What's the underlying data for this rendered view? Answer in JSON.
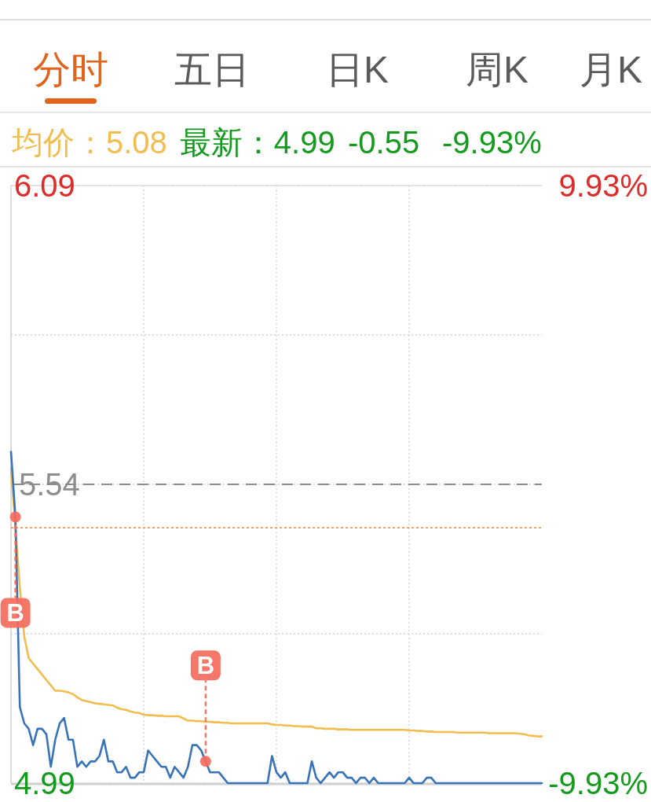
{
  "chart_data": {
    "type": "line",
    "title": "分时",
    "annotations": [
      "五日",
      "日K",
      "周K",
      "月K",
      "均价：5.08",
      "最新：4.99",
      "-0.55",
      "-9.93%"
    ],
    "categories": [
      null,
      null,
      null,
      null,
      null,
      null,
      null,
      null,
      null,
      null,
      null,
      null,
      null,
      null,
      null,
      null,
      null,
      null,
      null,
      null,
      null,
      null,
      null,
      null,
      null,
      null,
      null,
      null,
      null,
      null,
      null,
      null,
      null,
      null,
      null,
      null,
      null,
      null,
      null,
      null,
      null,
      null,
      null,
      null,
      null,
      null,
      null,
      null,
      null,
      null,
      null,
      null,
      null,
      null,
      null,
      null,
      null,
      null,
      null,
      null,
      null,
      null,
      null,
      null,
      null,
      null,
      null,
      null,
      null,
      null,
      null,
      null,
      null,
      null,
      null,
      null,
      null,
      null,
      null,
      null,
      null,
      null,
      null,
      null,
      null,
      null,
      null,
      null,
      null,
      null,
      null,
      null,
      null,
      null,
      null,
      null,
      null,
      null,
      null,
      null,
      null,
      null,
      null,
      null,
      null,
      null,
      null,
      null,
      null,
      null,
      null,
      null,
      null,
      null,
      null,
      null,
      null,
      null,
      null,
      null,
      null
    ],
    "series": [
      {
        "color": "#f2bd4f",
        "values": [
          5.57,
          5.46,
          5.35,
          5.26,
          5.22,
          5.21,
          5.2,
          5.19,
          5.18,
          5.17,
          5.16,
          5.16,
          5.159,
          5.157,
          5.154,
          5.148,
          5.143,
          5.141,
          5.139,
          5.137,
          5.136,
          5.135,
          5.134,
          5.133,
          5.129,
          5.126,
          5.125,
          5.122,
          5.12,
          5.119,
          5.116,
          5.115,
          5.115,
          5.114,
          5.114,
          5.113,
          5.113,
          5.113,
          5.113,
          5.109,
          5.105,
          5.105,
          5.104,
          5.104,
          5.103,
          5.103,
          5.102,
          5.102,
          5.101,
          5.101,
          5.1,
          5.1,
          5.1,
          5.1,
          5.1,
          5.1,
          5.1,
          5.1,
          5.1,
          5.098,
          5.097,
          5.097,
          5.096,
          5.096,
          5.095,
          5.095,
          5.094,
          5.094,
          5.094,
          5.091,
          5.091,
          5.09,
          5.09,
          5.09,
          5.089,
          5.089,
          5.089,
          5.088,
          5.088,
          5.088,
          5.088,
          5.088,
          5.088,
          5.088,
          5.088,
          5.088,
          5.088,
          5.088,
          5.088,
          5.088,
          5.087,
          5.087,
          5.086,
          5.086,
          5.085,
          5.085,
          5.084,
          5.084,
          5.084,
          5.084,
          5.084,
          5.083,
          5.083,
          5.083,
          5.083,
          5.083,
          5.083,
          5.083,
          5.082,
          5.082,
          5.082,
          5.082,
          5.082,
          5.082,
          5.082,
          5.081,
          5.08,
          5.078,
          5.077,
          5.076,
          5.076
        ]
      },
      {
        "color": "#3873b9",
        "values": [
          5.6,
          5.48,
          5.13,
          5.1,
          5.09,
          5.06,
          5.09,
          5.09,
          5.08,
          5.02,
          5.07,
          5.1,
          5.11,
          5.07,
          5.07,
          5.02,
          5.03,
          5.02,
          5.03,
          5.03,
          5.04,
          5.07,
          5.03,
          5.03,
          5.01,
          5.01,
          5.02,
          5.0,
          5.0,
          5.01,
          5.01,
          5.05,
          5.04,
          5.03,
          5.02,
          5.02,
          5.0,
          5.02,
          5.01,
          5.0,
          5.02,
          5.06,
          5.06,
          5.05,
          5.03,
          5.01,
          5.01,
          5.01,
          5.0,
          4.99,
          4.99,
          4.99,
          4.99,
          4.99,
          4.99,
          4.99,
          4.99,
          4.99,
          4.99,
          5.04,
          5.01,
          5.0,
          5.01,
          4.99,
          4.99,
          4.99,
          4.99,
          4.99,
          5.03,
          5.0,
          4.99,
          5.0,
          5.01,
          5.0,
          5.01,
          5.01,
          5.0,
          5.0,
          4.99,
          5.0,
          5.0,
          4.99,
          5.0,
          4.99,
          4.99,
          4.99,
          4.99,
          4.99,
          4.99,
          4.99,
          5.0,
          4.99,
          4.99,
          4.99,
          5.0,
          5.0,
          4.99,
          4.99,
          4.99,
          4.99,
          4.99,
          4.99,
          4.99,
          4.99,
          4.99,
          4.99,
          4.99,
          4.99,
          4.99,
          4.99,
          4.99,
          4.99,
          4.99,
          4.99,
          4.99,
          4.99,
          4.99,
          4.99,
          4.99,
          4.99,
          4.99
        ]
      },
      {
        "type": "scatter",
        "color": "#f36b5c",
        "values": [
          null,
          5.48,
          null,
          null,
          null,
          null,
          null,
          null,
          null,
          null,
          null,
          null,
          null,
          null,
          null,
          null,
          null,
          null,
          null,
          null,
          null,
          null,
          null,
          null,
          null,
          null,
          null,
          null,
          null,
          null,
          null,
          null,
          null,
          null,
          null,
          null,
          null,
          null,
          null,
          null,
          null,
          null,
          null,
          null,
          5.03,
          null,
          null,
          null,
          null,
          null,
          null,
          null,
          null,
          null,
          null,
          null,
          null,
          null,
          null,
          null,
          null,
          null,
          null,
          null,
          null,
          null,
          null,
          null,
          null,
          null,
          null,
          null,
          null,
          null,
          null,
          null,
          null,
          null,
          null,
          null,
          null,
          null,
          null,
          null,
          null,
          null,
          null,
          null,
          null,
          null,
          null,
          null,
          null,
          null,
          null,
          null,
          null,
          null,
          null,
          null,
          null,
          null,
          null,
          null,
          null,
          null,
          null,
          null,
          null,
          null,
          null,
          null,
          null,
          null,
          null,
          null,
          null,
          null,
          null,
          null,
          null
        ],
        "value_labels": [
          null,
          "B",
          null,
          null,
          null,
          null,
          null,
          null,
          null,
          null,
          null,
          null,
          null,
          null,
          null,
          null,
          null,
          null,
          null,
          null,
          null,
          null,
          null,
          null,
          null,
          null,
          null,
          null,
          null,
          null,
          null,
          null,
          null,
          null,
          null,
          null,
          null,
          null,
          null,
          null,
          null,
          null,
          null,
          null,
          "B",
          null,
          null,
          null,
          null,
          null,
          null,
          null,
          null,
          null,
          null,
          null,
          null,
          null,
          null,
          null,
          null,
          null,
          null,
          null,
          null,
          null,
          null,
          null,
          null,
          null,
          null,
          null,
          null,
          null,
          null,
          null,
          null,
          null,
          null,
          null,
          null,
          null,
          null,
          null,
          null,
          null,
          null,
          null,
          null,
          null,
          null,
          null,
          null,
          null,
          null,
          null,
          null,
          null,
          null,
          null,
          null,
          null,
          null,
          null,
          null,
          null,
          null,
          null,
          null,
          null,
          null,
          null,
          null,
          null,
          null,
          null,
          null,
          null,
          null,
          null,
          null
        ]
      }
    ],
    "ylim": [
      4.99,
      6.09
    ],
    "yticks": [
      4.99,
      {
        "value": 5.265,
        "label": null
      },
      5.54,
      {
        "value": 5.815,
        "label": null
      },
      6.09
    ],
    "y2lim": [
      -9.93,
      9.93
    ],
    "y2ticks": [
      {
        "value": -9.93,
        "label": "-9.93%"
      },
      {
        "value": 9.93,
        "label": "9.93%"
      }
    ],
    "ref_lines": [
      {
        "axis": "y",
        "value": 5.54,
        "color": "#8c8c8c",
        "line_style": "dashed"
      },
      {
        "axis": "y",
        "value": 5.46,
        "color": "#e3884c",
        "line_style": "dotted"
      }
    ],
    "grid": true,
    "tick_labels": "y"
  }
}
